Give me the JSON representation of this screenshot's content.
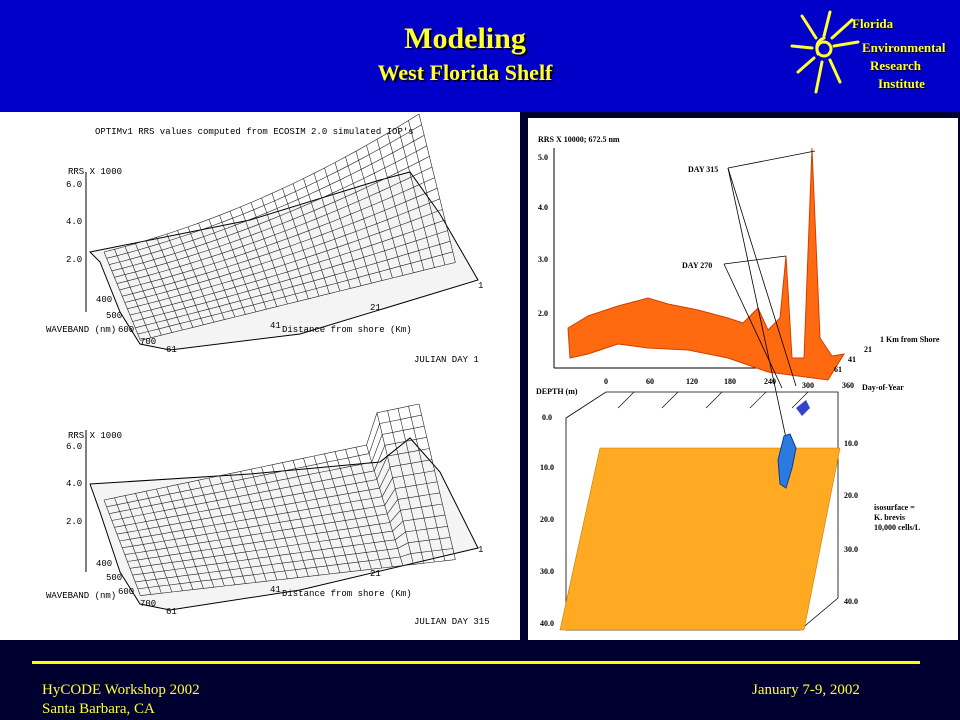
{
  "header": {
    "title": "Modeling",
    "subtitle": "West Florida Shelf",
    "logo": {
      "line1": "Florida",
      "line2": "Environmental",
      "line3": "Research",
      "line4": "Institute",
      "icon": "sun-icon"
    }
  },
  "left_panel": {
    "plot_title": "OPTIMv1 RRS values computed from ECOSIM 2.0 simulated IOP's",
    "top_plot": {
      "zlabel": "RRS X 1000",
      "z_ticks": [
        "6.0",
        "4.0",
        "2.0"
      ],
      "waveband_label": "WAVEBAND (nm)",
      "waveband_ticks": [
        "400",
        "500",
        "600",
        "700"
      ],
      "distance_label": "Distance from shore (Km)",
      "distance_ticks": [
        "1",
        "21",
        "41",
        "61"
      ],
      "caption": "JULIAN DAY 1"
    },
    "bottom_plot": {
      "zlabel": "RRS X 1000",
      "z_ticks": [
        "6.0",
        "4.0",
        "2.0"
      ],
      "waveband_label": "WAVEBAND (nm)",
      "waveband_ticks": [
        "400",
        "500",
        "600",
        "700"
      ],
      "distance_label": "Distance from shore (Km)",
      "distance_ticks": [
        "1",
        "21",
        "41",
        "61"
      ],
      "caption": "JULIAN DAY 315"
    }
  },
  "right_panel": {
    "top_ylabel": "RRS X 10000; 672.5 nm",
    "top_yticks": [
      "5.0",
      "4.0",
      "3.0",
      "2.0"
    ],
    "day315_label": "DAY 315",
    "day270_label": "DAY 270",
    "km_label": "1   Km from Shore",
    "km_ticks": [
      "21",
      "41",
      "61"
    ],
    "doy_ticks": [
      "0",
      "60",
      "120",
      "180",
      "240",
      "300",
      "360"
    ],
    "doy_label": "Day-of-Year",
    "depth_label": "DEPTH (m)",
    "depth_ticks_left": [
      "0.0",
      "10.0",
      "20.0",
      "30.0",
      "40.0"
    ],
    "depth_ticks_right": [
      "10.0",
      "20.0",
      "30.0",
      "40.0"
    ],
    "iso_line1": "isosurface =",
    "iso_line2": "K. brevis",
    "iso_line3": "10,000 cells/L"
  },
  "footer": {
    "left_line1": "HyCODE Workshop 2002",
    "left_line2": "Santa Barbara, CA",
    "right_line1": "January 7-9, 2002"
  },
  "colors": {
    "header_bg": "#0000c8",
    "accent": "#ffff33",
    "surface_orange": "#ff6a10",
    "depth_fill": "#ffaa22",
    "isosurface_blue": "#2a7adf"
  }
}
